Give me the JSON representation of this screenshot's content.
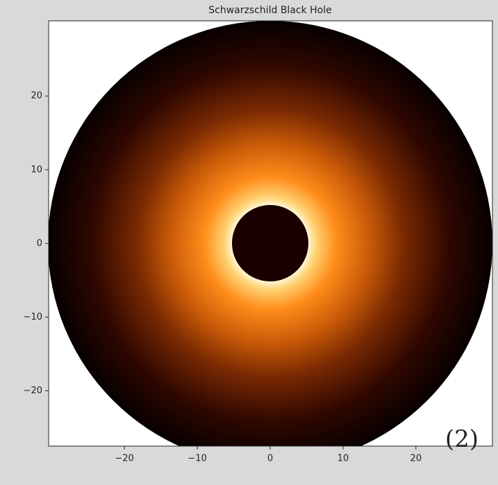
{
  "chart_data": {
    "type": "image",
    "title": "Schwarzschild Black Hole",
    "xlim": [
      -30.4,
      30.5
    ],
    "ylim": [
      -27.5,
      30.2
    ],
    "xticks": [
      {
        "value": -20,
        "label": "−20"
      },
      {
        "value": -10,
        "label": "−10"
      },
      0,
      10,
      20
    ],
    "yticks": [
      {
        "value": -20,
        "label": "−20"
      },
      {
        "value": -10,
        "label": "−10"
      },
      0,
      10,
      20
    ],
    "annotation": "(2)"
  }
}
